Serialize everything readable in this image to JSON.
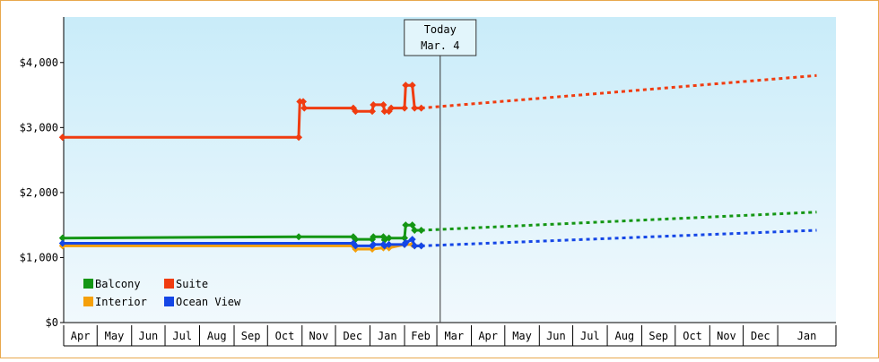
{
  "chart_data": {
    "type": "line",
    "title": "",
    "xlabel": "",
    "ylabel": "",
    "ylim": [
      0,
      4700
    ],
    "y_ticks": [
      {
        "value": 0,
        "label": "$0"
      },
      {
        "value": 1000,
        "label": "$1,000"
      },
      {
        "value": 2000,
        "label": "$2,000"
      },
      {
        "value": 3000,
        "label": "$3,000"
      },
      {
        "value": 4000,
        "label": "$4,000"
      }
    ],
    "x_range": [
      "2023-04-01",
      "2024-02-06"
    ],
    "months": [
      {
        "date": "2023-04-01",
        "label": "Apr"
      },
      {
        "date": "2023-05-01",
        "label": "May"
      },
      {
        "date": "2023-06-01",
        "label": "Jun"
      },
      {
        "date": "2023-07-01",
        "label": "Jul"
      },
      {
        "date": "2023-08-01",
        "label": "Aug"
      },
      {
        "date": "2023-09-01",
        "label": "Sep"
      },
      {
        "date": "2023-10-01",
        "label": "Oct"
      },
      {
        "date": "2023-11-01",
        "label": "Nov"
      },
      {
        "date": "2023-12-01",
        "label": "Dec"
      },
      {
        "date": "2024-01-01",
        "label": "Jan"
      },
      {
        "date": "2024-02-01",
        "label": "Feb"
      },
      {
        "date": "2024-03-01",
        "label": "Mar"
      },
      {
        "date": "2024-04-01",
        "label": "Apr"
      },
      {
        "date": "2024-05-01",
        "label": "May"
      },
      {
        "date": "2024-06-01",
        "label": "Jun"
      },
      {
        "date": "2024-07-01",
        "label": "Jul"
      },
      {
        "date": "2024-08-01",
        "label": "Aug"
      },
      {
        "date": "2024-09-01",
        "label": "Sep"
      },
      {
        "date": "2024-10-01",
        "label": "Oct"
      },
      {
        "date": "2024-11-01",
        "label": "Nov"
      },
      {
        "date": "2024-12-01",
        "label": "Dec"
      },
      {
        "date": "2025-01-01",
        "label": "Jan"
      }
    ],
    "today": {
      "date": "2024-03-04",
      "label_line1": "Today",
      "label_line2": "Mar. 4"
    },
    "legend_position": "bottom-left",
    "grid": false,
    "series": [
      {
        "name": "Suite",
        "color": "#f03c10",
        "points": [
          [
            "2023-03-31",
            2850
          ],
          [
            "2023-10-29",
            2850
          ],
          [
            "2023-10-30",
            3400
          ],
          [
            "2023-11-02",
            3400
          ],
          [
            "2023-11-03",
            3300
          ],
          [
            "2023-12-17",
            3300
          ],
          [
            "2023-12-19",
            3250
          ],
          [
            "2024-01-03",
            3250
          ],
          [
            "2024-01-04",
            3350
          ],
          [
            "2024-01-13",
            3350
          ],
          [
            "2024-01-14",
            3250
          ],
          [
            "2024-01-18",
            3250
          ],
          [
            "2024-01-20",
            3300
          ],
          [
            "2024-02-01",
            3300
          ],
          [
            "2024-02-02",
            3650
          ],
          [
            "2024-02-08",
            3650
          ],
          [
            "2024-02-10",
            3300
          ],
          [
            "2024-02-16",
            3300
          ]
        ],
        "forecast": [
          [
            "2024-02-16",
            3300
          ],
          [
            "2025-02-05",
            3800
          ]
        ]
      },
      {
        "name": "Balcony",
        "color": "#149614",
        "points": [
          [
            "2023-03-31",
            1300
          ],
          [
            "2023-10-29",
            1320
          ],
          [
            "2023-12-17",
            1320
          ],
          [
            "2023-12-19",
            1280
          ],
          [
            "2024-01-03",
            1280
          ],
          [
            "2024-01-04",
            1320
          ],
          [
            "2024-01-13",
            1320
          ],
          [
            "2024-01-14",
            1270
          ],
          [
            "2024-01-18",
            1300
          ],
          [
            "2024-02-01",
            1300
          ],
          [
            "2024-02-02",
            1500
          ],
          [
            "2024-02-08",
            1500
          ],
          [
            "2024-02-10",
            1420
          ],
          [
            "2024-02-16",
            1420
          ]
        ],
        "forecast": [
          [
            "2024-02-16",
            1420
          ],
          [
            "2025-02-05",
            1700
          ]
        ]
      },
      {
        "name": "Interior",
        "color": "#f5a00a",
        "points": [
          [
            "2023-03-31",
            1180
          ],
          [
            "2023-11-01",
            1180
          ],
          [
            "2023-12-17",
            1180
          ],
          [
            "2023-12-19",
            1130
          ],
          [
            "2024-01-03",
            1130
          ],
          [
            "2024-01-13",
            1150
          ],
          [
            "2024-01-18",
            1150
          ],
          [
            "2024-02-01",
            1200
          ],
          [
            "2024-02-08",
            1200
          ],
          [
            "2024-02-10",
            1180
          ],
          [
            "2024-02-16",
            1180
          ]
        ],
        "forecast": []
      },
      {
        "name": "Ocean View",
        "color": "#1446e6",
        "points": [
          [
            "2023-03-31",
            1220
          ],
          [
            "2023-11-02",
            1220
          ],
          [
            "2023-12-17",
            1220
          ],
          [
            "2023-12-19",
            1180
          ],
          [
            "2024-01-03",
            1180
          ],
          [
            "2024-01-04",
            1200
          ],
          [
            "2024-01-13",
            1200
          ],
          [
            "2024-01-14",
            1180
          ],
          [
            "2024-01-18",
            1200
          ],
          [
            "2024-02-01",
            1200
          ],
          [
            "2024-02-02",
            1230
          ],
          [
            "2024-02-08",
            1280
          ],
          [
            "2024-02-10",
            1180
          ],
          [
            "2024-02-16",
            1180
          ]
        ],
        "forecast": [
          [
            "2024-02-16",
            1180
          ],
          [
            "2025-02-05",
            1420
          ]
        ]
      }
    ],
    "legend": [
      {
        "name": "Balcony",
        "color": "#149614"
      },
      {
        "name": "Suite",
        "color": "#f03c10"
      },
      {
        "name": "Interior",
        "color": "#f5a00a"
      },
      {
        "name": "Ocean View",
        "color": "#1446e6"
      }
    ]
  }
}
